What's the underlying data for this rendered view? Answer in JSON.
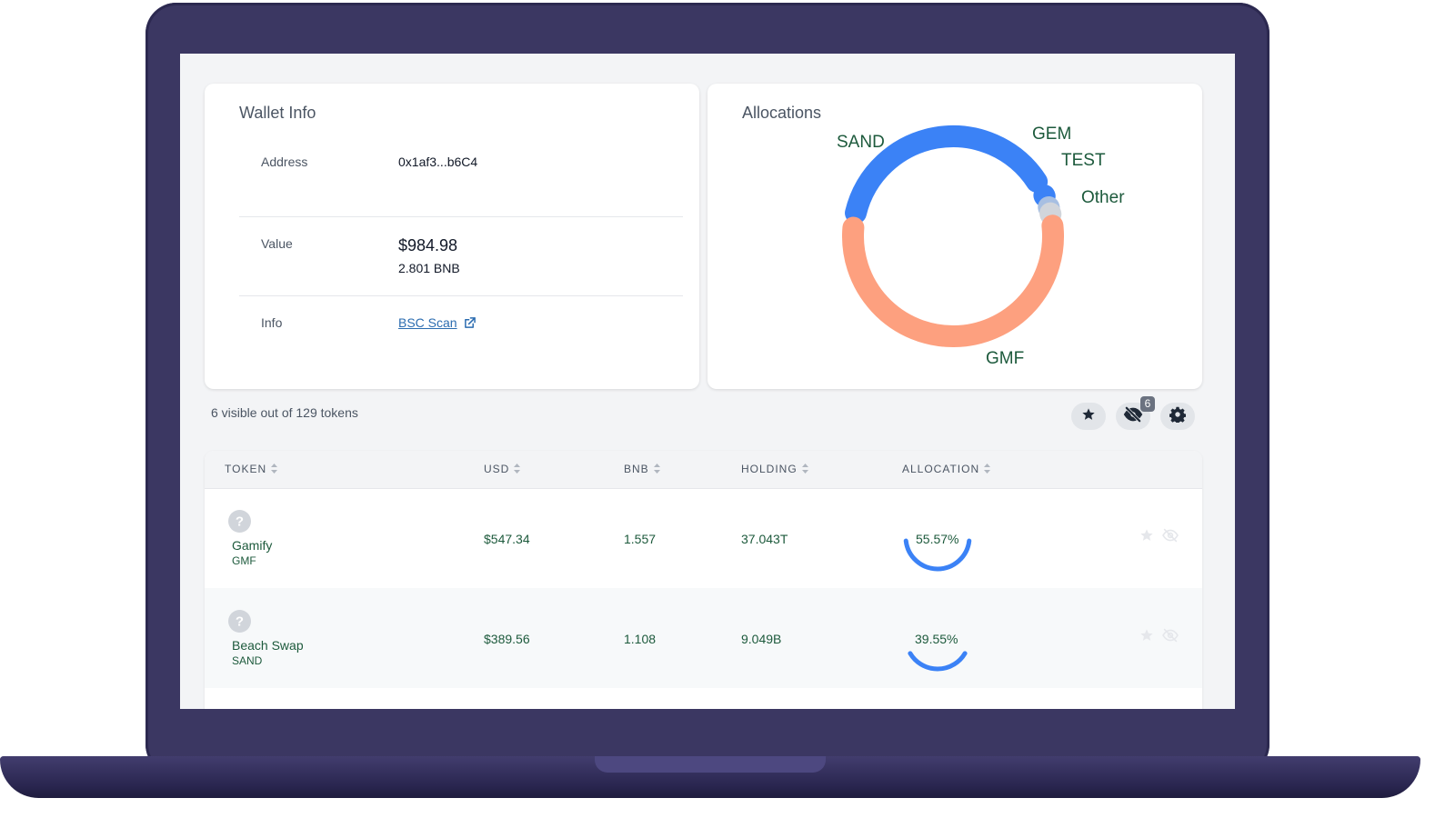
{
  "wallet_info": {
    "title": "Wallet Info",
    "address_label": "Address",
    "address_value": "0x1af3...b6C4",
    "value_label": "Value",
    "value_usd": "$984.98",
    "value_bnb": "2.801 BNB",
    "info_label": "Info",
    "info_link": "BSC Scan"
  },
  "allocations": {
    "title": "Allocations",
    "segments": [
      {
        "label": "SAND",
        "share": 0.3955,
        "color": "#3b82f6"
      },
      {
        "label": "GEM",
        "share": 0.02,
        "color": "#3b82f6"
      },
      {
        "label": "TEST",
        "share": 0.01,
        "color": "#a7bfe2"
      },
      {
        "label": "Other",
        "share": 0.02,
        "color": "#d1d5db"
      },
      {
        "label": "GMF",
        "share": 0.5557,
        "color": "#fda07f"
      }
    ]
  },
  "toolbar": {
    "tokens_count": "6 visible out of 129 tokens",
    "hidden_badge": "6",
    "icons": [
      "star-icon",
      "eye-slash-icon",
      "gear-icon"
    ]
  },
  "table": {
    "columns": [
      "TOKEN",
      "USD",
      "BNB",
      "HOLDING",
      "ALLOCATION"
    ],
    "rows": [
      {
        "name": "Gamify",
        "symbol": "GMF",
        "usd": "$547.34",
        "bnb": "1.557",
        "holding": "37.043T",
        "allocation_label": "55.57%",
        "allocation": 0.5557
      },
      {
        "name": "Beach Swap",
        "symbol": "SAND",
        "usd": "$389.56",
        "bnb": "1.108",
        "holding": "9.049B",
        "allocation_label": "39.55%",
        "allocation": 0.3955
      }
    ]
  },
  "colors": {
    "frame": "#3b3762",
    "text_green": "#1d5a3c",
    "link_blue": "#2b6cb0",
    "ring_blue": "#3b82f6"
  }
}
